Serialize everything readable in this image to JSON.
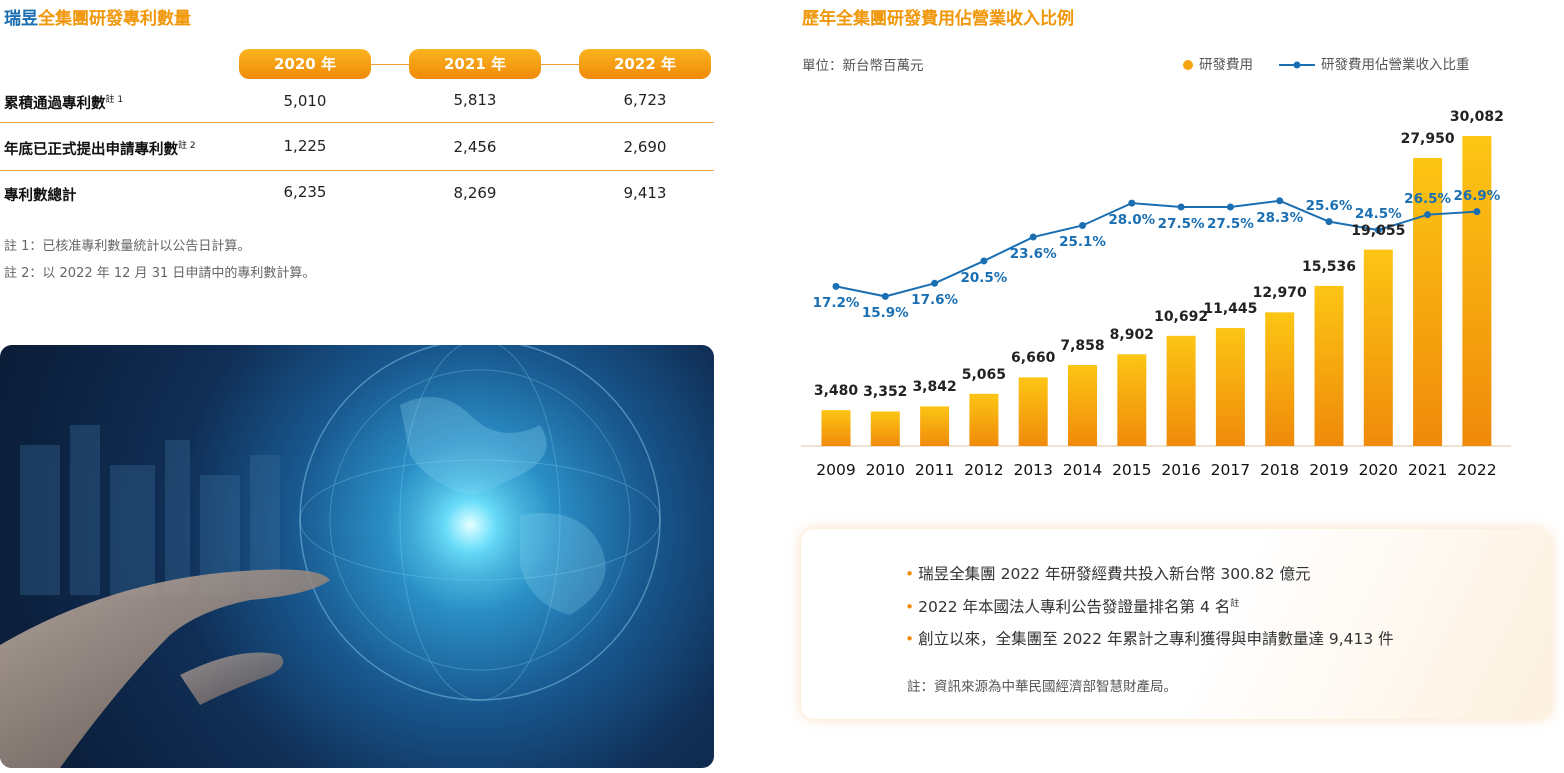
{
  "left_title": {
    "brand": "瑞昱",
    "rest": "全集團研發專利數量"
  },
  "patent_table": {
    "years": [
      "2020 年",
      "2021 年",
      "2022 年"
    ],
    "rows": [
      {
        "label": "累積通過專利數",
        "sup": "註 1",
        "values": [
          "5,010",
          "5,813",
          "6,723"
        ]
      },
      {
        "label": "年底已正式提出申請專利數",
        "sup": "註 2",
        "values": [
          "1,225",
          "2,456",
          "2,690"
        ]
      },
      {
        "label": "專利數總計",
        "sup": "",
        "values": [
          "6,235",
          "8,269",
          "9,413"
        ]
      }
    ],
    "notes": [
      "註 1：已核准專利數量統計以公告日計算。",
      "註 2：以 2022 年 12 月 31 日申請中的專利數計算。"
    ]
  },
  "right_title": "歷年全集團研發費用佔營業收入比例",
  "unit": "單位：新台幣百萬元",
  "chart_data": {
    "type": "bar",
    "title": "歷年全集團研發費用佔營業收入比例",
    "unit": "單位：新台幣百萬元",
    "categories": [
      "2009",
      "2010",
      "2011",
      "2012",
      "2013",
      "2014",
      "2015",
      "2016",
      "2017",
      "2018",
      "2019",
      "2020",
      "2021",
      "2022"
    ],
    "series": [
      {
        "name": "研發費用",
        "type": "bar",
        "color": "#f6a40f",
        "values": [
          3480,
          3352,
          3842,
          5065,
          6660,
          7858,
          8902,
          10692,
          11445,
          12970,
          15536,
          19055,
          27950,
          30082
        ],
        "labels": [
          "3,480",
          "3,352",
          "3,842",
          "5,065",
          "6,660",
          "7,858",
          "8,902",
          "10,692",
          "11,445",
          "12,970",
          "15,536",
          "19,055",
          "27,950",
          "30,082"
        ]
      },
      {
        "name": "研發費用佔營業收入比重",
        "type": "line",
        "color": "#1a6fb3",
        "values": [
          17.2,
          15.9,
          17.6,
          20.5,
          23.6,
          25.1,
          28.0,
          27.5,
          27.5,
          28.3,
          25.6,
          24.5,
          26.5,
          26.9
        ],
        "labels": [
          "17.2%",
          "15.9%",
          "17.6%",
          "20.5%",
          "23.6%",
          "25.1%",
          "28.0%",
          "27.5%",
          "27.5%",
          "28.3%",
          "25.6%",
          "24.5%",
          "26.5%",
          "26.9%"
        ]
      }
    ],
    "legend_position": "top-right",
    "grid": false
  },
  "highlights": {
    "items": [
      {
        "text": "瑞昱全集團 2022 年研發經費共投入新台幣 300.82 億元",
        "sup": ""
      },
      {
        "text": "2022 年本國法人專利公告發證量排名第 4 名",
        "sup": "註"
      },
      {
        "text": "創立以來，全集團至 2022 年累計之專利獲得與申請數量達 9,413 件",
        "sup": ""
      }
    ],
    "note": "註：資訊來源為中華民國經濟部智慧財產局。",
    "bullet": "•"
  },
  "colors": {
    "accent": "#f0970a",
    "brand_blue": "#1a6fb3",
    "bar_top": "#fcc514",
    "bar_bottom": "#f08a0a"
  }
}
